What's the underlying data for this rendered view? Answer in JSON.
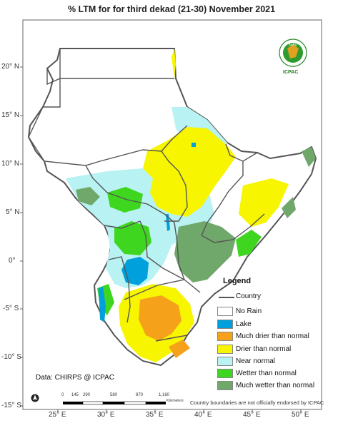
{
  "title": "% LTM for  for third dekad (21-30) November 2021",
  "latitude_labels": [
    "20° N",
    "15° N",
    "10° N",
    "5° N",
    "0°",
    "-5° S",
    "-10° S",
    "-15° S"
  ],
  "longitude_labels": [
    "25° E",
    "30° E",
    "35° E",
    "40° E",
    "45° E",
    "50° E"
  ],
  "legend": {
    "title": "Legend",
    "country": "Country",
    "items": [
      {
        "label": "No Rain",
        "color": "#ffffff"
      },
      {
        "label": "Lake",
        "color": "#00a0dc"
      },
      {
        "label": "Much drier than normal",
        "color": "#f5a21a"
      },
      {
        "label": "Drier than normal",
        "color": "#f7f500"
      },
      {
        "label": "Near normal",
        "color": "#b8f2f2"
      },
      {
        "label": "Wetter than normal",
        "color": "#3ed61e"
      },
      {
        "label": "Much wetter than normal",
        "color": "#6fa86a"
      }
    ]
  },
  "data_source": "Data: CHIRPS @ ICPAC",
  "disclaimer": "Country boundaries are not officially endorsed by ICPAC",
  "scale": {
    "ticks": [
      "0",
      "145",
      "290",
      "580",
      "870",
      "1,160"
    ],
    "unit": "Kilometers"
  },
  "logo": {
    "text": "ICPAC",
    "badge": "IGAD"
  },
  "colors": {
    "land": "#ffffff",
    "frame": "#444444",
    "outside": "#ffffff"
  },
  "icons": {
    "north_arrow": "north-arrow-icon",
    "logo": "icpac-logo-icon"
  }
}
